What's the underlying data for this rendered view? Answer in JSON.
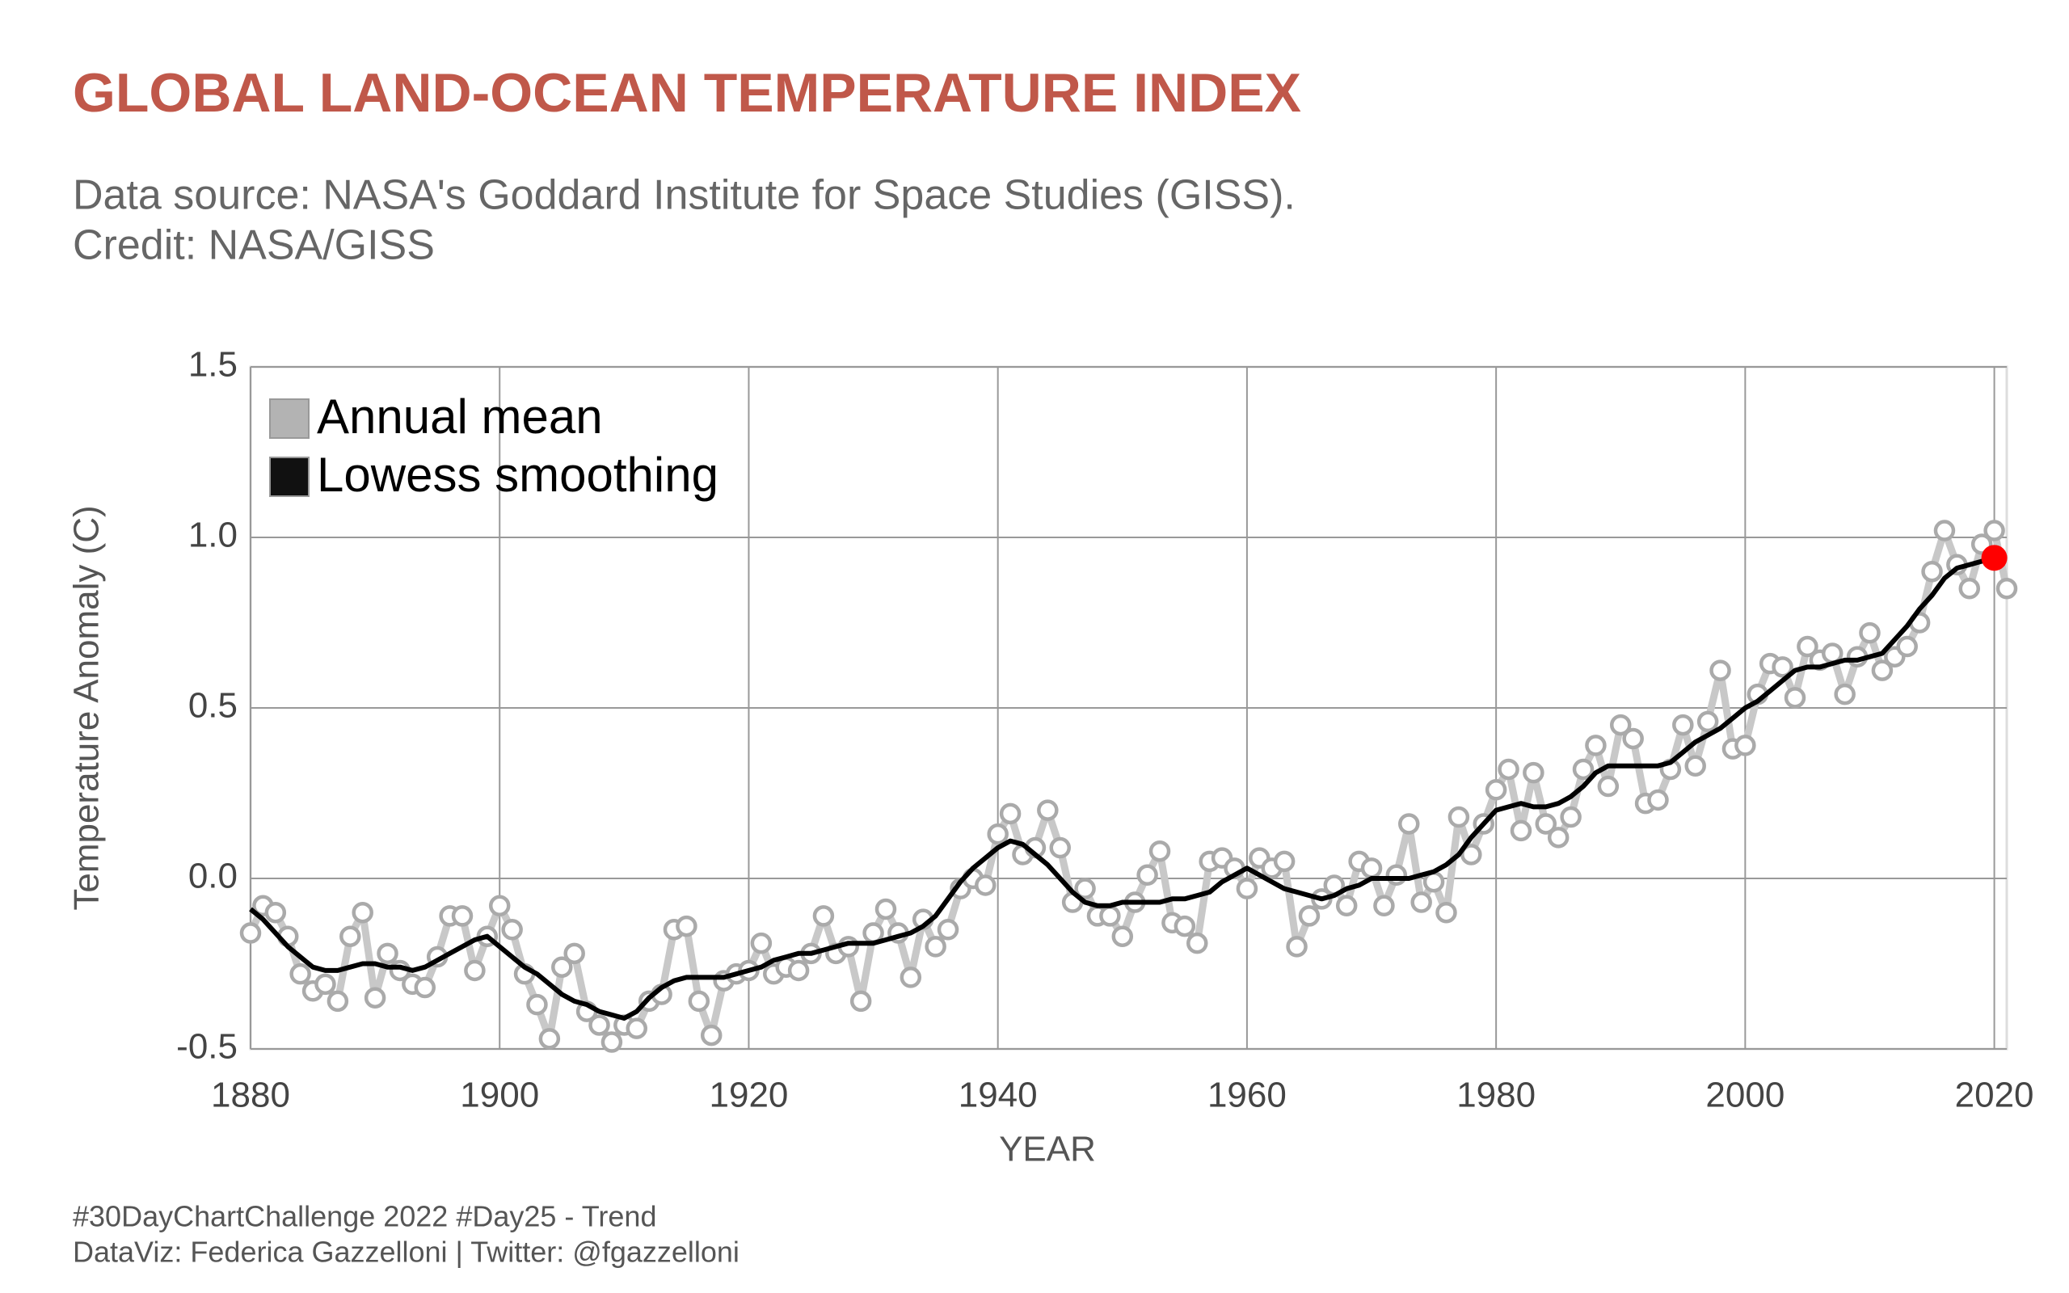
{
  "chart_data": {
    "type": "line",
    "title": "GLOBAL LAND-OCEAN TEMPERATURE INDEX",
    "subtitle": [
      "Data source: NASA's Goddard Institute for Space Studies (GISS).",
      "Credit: NASA/GISS"
    ],
    "x_label": "YEAR",
    "y_label": "Temperature Anomaly (C)",
    "caption": [
      "#30DayChartChallenge 2022 #Day25 - Trend",
      "DataViz: Federica Gazzelloni | Twitter: @fgazzelloni"
    ],
    "x": [
      1880,
      1881,
      1882,
      1883,
      1884,
      1885,
      1886,
      1887,
      1888,
      1889,
      1890,
      1891,
      1892,
      1893,
      1894,
      1895,
      1896,
      1897,
      1898,
      1899,
      1900,
      1901,
      1902,
      1903,
      1904,
      1905,
      1906,
      1907,
      1908,
      1909,
      1910,
      1911,
      1912,
      1913,
      1914,
      1915,
      1916,
      1917,
      1918,
      1919,
      1920,
      1921,
      1922,
      1923,
      1924,
      1925,
      1926,
      1927,
      1928,
      1929,
      1930,
      1931,
      1932,
      1933,
      1934,
      1935,
      1936,
      1937,
      1938,
      1939,
      1940,
      1941,
      1942,
      1943,
      1944,
      1945,
      1946,
      1947,
      1948,
      1949,
      1950,
      1951,
      1952,
      1953,
      1954,
      1955,
      1956,
      1957,
      1958,
      1959,
      1960,
      1961,
      1962,
      1963,
      1964,
      1965,
      1966,
      1967,
      1968,
      1969,
      1970,
      1971,
      1972,
      1973,
      1974,
      1975,
      1976,
      1977,
      1978,
      1979,
      1980,
      1981,
      1982,
      1983,
      1984,
      1985,
      1986,
      1987,
      1988,
      1989,
      1990,
      1991,
      1992,
      1993,
      1994,
      1995,
      1996,
      1997,
      1998,
      1999,
      2000,
      2001,
      2002,
      2003,
      2004,
      2005,
      2006,
      2007,
      2008,
      2009,
      2010,
      2011,
      2012,
      2013,
      2014,
      2015,
      2016,
      2017,
      2018,
      2019,
      2020,
      2021
    ],
    "series": [
      {
        "name": "Annual mean",
        "color": "#c8c8c8",
        "marker_color": "#aaaaaa",
        "values": [
          -0.16,
          -0.08,
          -0.1,
          -0.17,
          -0.28,
          -0.33,
          -0.31,
          -0.36,
          -0.17,
          -0.1,
          -0.35,
          -0.22,
          -0.27,
          -0.31,
          -0.32,
          -0.23,
          -0.11,
          -0.11,
          -0.27,
          -0.17,
          -0.08,
          -0.15,
          -0.28,
          -0.37,
          -0.47,
          -0.26,
          -0.22,
          -0.39,
          -0.43,
          -0.48,
          -0.43,
          -0.44,
          -0.36,
          -0.34,
          -0.15,
          -0.14,
          -0.36,
          -0.46,
          -0.3,
          -0.28,
          -0.27,
          -0.19,
          -0.28,
          -0.26,
          -0.27,
          -0.22,
          -0.11,
          -0.22,
          -0.2,
          -0.36,
          -0.16,
          -0.09,
          -0.16,
          -0.29,
          -0.12,
          -0.2,
          -0.15,
          -0.03,
          0.0,
          -0.02,
          0.13,
          0.19,
          0.07,
          0.09,
          0.2,
          0.09,
          -0.07,
          -0.03,
          -0.11,
          -0.11,
          -0.17,
          -0.07,
          0.01,
          0.08,
          -0.13,
          -0.14,
          -0.19,
          0.05,
          0.06,
          0.03,
          -0.03,
          0.06,
          0.03,
          0.05,
          -0.2,
          -0.11,
          -0.06,
          -0.02,
          -0.08,
          0.05,
          0.03,
          -0.08,
          0.01,
          0.16,
          -0.07,
          -0.01,
          -0.1,
          0.18,
          0.07,
          0.16,
          0.26,
          0.32,
          0.14,
          0.31,
          0.16,
          0.12,
          0.18,
          0.32,
          0.39,
          0.27,
          0.45,
          0.41,
          0.22,
          0.23,
          0.32,
          0.45,
          0.33,
          0.46,
          0.61,
          0.38,
          0.39,
          0.54,
          0.63,
          0.62,
          0.53,
          0.68,
          0.64,
          0.66,
          0.54,
          0.65,
          0.72,
          0.61,
          0.65,
          0.68,
          0.75,
          0.9,
          1.02,
          0.92,
          0.85,
          0.98,
          1.02,
          0.85
        ]
      },
      {
        "name": "Lowess smoothing",
        "color": "#000000",
        "values": [
          -0.09,
          -0.12,
          -0.16,
          -0.2,
          -0.23,
          -0.26,
          -0.27,
          -0.27,
          -0.26,
          -0.25,
          -0.25,
          -0.26,
          -0.26,
          -0.27,
          -0.26,
          -0.24,
          -0.22,
          -0.2,
          -0.18,
          -0.17,
          -0.2,
          -0.23,
          -0.26,
          -0.28,
          -0.31,
          -0.34,
          -0.36,
          -0.37,
          -0.39,
          -0.4,
          -0.41,
          -0.39,
          -0.35,
          -0.32,
          -0.3,
          -0.29,
          -0.29,
          -0.29,
          -0.29,
          -0.28,
          -0.27,
          -0.26,
          -0.24,
          -0.23,
          -0.22,
          -0.22,
          -0.21,
          -0.2,
          -0.19,
          -0.19,
          -0.19,
          -0.18,
          -0.17,
          -0.16,
          -0.14,
          -0.11,
          -0.06,
          -0.01,
          0.03,
          0.06,
          0.09,
          0.11,
          0.1,
          0.07,
          0.04,
          0.0,
          -0.04,
          -0.07,
          -0.08,
          -0.08,
          -0.07,
          -0.07,
          -0.07,
          -0.07,
          -0.06,
          -0.06,
          -0.05,
          -0.04,
          -0.01,
          0.01,
          0.03,
          0.01,
          -0.01,
          -0.03,
          -0.04,
          -0.05,
          -0.06,
          -0.05,
          -0.03,
          -0.02,
          0.0,
          0.0,
          0.0,
          0.0,
          0.01,
          0.02,
          0.04,
          0.07,
          0.12,
          0.16,
          0.2,
          0.21,
          0.22,
          0.21,
          0.21,
          0.22,
          0.24,
          0.27,
          0.31,
          0.33,
          0.33,
          0.33,
          0.33,
          0.33,
          0.34,
          0.37,
          0.4,
          0.42,
          0.44,
          0.47,
          0.5,
          0.52,
          0.55,
          0.58,
          0.61,
          0.62,
          0.62,
          0.63,
          0.64,
          0.64,
          0.65,
          0.66,
          0.7,
          0.74,
          0.79,
          0.83,
          0.88,
          0.91,
          0.92,
          0.93,
          0.94,
          null
        ]
      }
    ],
    "highlight": {
      "x": 2020,
      "value": 0.94,
      "color": "#ff0000"
    },
    "xlim": [
      1880,
      2021
    ],
    "xticks": [
      1880,
      1900,
      1920,
      1940,
      1960,
      1980,
      2000,
      2020
    ],
    "ylim": [
      -0.5,
      1.5
    ],
    "yticks": [
      -0.5,
      {
        "value": 0,
        "label": "0.0"
      },
      0.5,
      {
        "value": 1,
        "label": "1.0"
      },
      1.5
    ],
    "grid": true,
    "legend": "top-left"
  }
}
